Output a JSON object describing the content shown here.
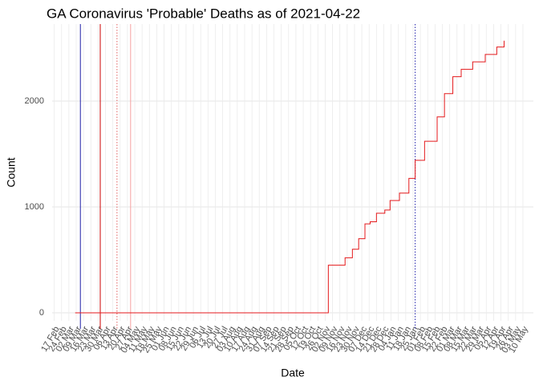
{
  "chart_data": {
    "type": "line",
    "title": "GA Coronavirus 'Probable' Deaths as of 2021-04-22",
    "x_label": "Date",
    "y_label": "Count",
    "x": [
      "2020-03-08",
      "2020-11-04",
      "2020-11-05",
      "2020-11-11",
      "2020-11-21",
      "2020-11-28",
      "2020-12-04",
      "2020-12-10",
      "2020-12-15",
      "2020-12-21",
      "2020-12-29",
      "2021-01-03",
      "2021-01-12",
      "2021-01-21",
      "2021-01-27",
      "2021-02-05",
      "2021-02-17",
      "2021-02-24",
      "2021-03-04",
      "2021-03-12",
      "2021-03-23",
      "2021-04-04",
      "2021-04-15",
      "2021-04-22"
    ],
    "series": [
      {
        "color": "#e41a1c",
        "values": [
          0,
          0,
          450,
          450,
          520,
          600,
          700,
          840,
          860,
          940,
          970,
          1060,
          1130,
          1270,
          1440,
          1620,
          1850,
          2070,
          2230,
          2300,
          2370,
          2440,
          2510,
          2570
        ]
      }
    ],
    "vlines": [
      {
        "x": "2020-03-13",
        "color": "#1f1fa8",
        "dash": false
      },
      {
        "x": "2020-04-01",
        "color": "#cc0000",
        "dash": false
      },
      {
        "x": "2020-04-17",
        "color": "#e06060",
        "dash": true
      },
      {
        "x": "2020-04-30",
        "color": "#f4a0a0",
        "dash": false
      },
      {
        "x": "2021-01-27",
        "color": "#1f1fa8",
        "dash": true
      }
    ],
    "xlim": [
      "2020-02-15",
      "2021-05-20"
    ],
    "xticks": [
      {
        "value": "2020-02-17",
        "label": "17 Feb"
      },
      {
        "value": "2020-02-24",
        "label": "24 Feb"
      },
      {
        "value": "2020-03-02",
        "label": "02 Mar"
      },
      {
        "value": "2020-03-09",
        "label": "09 Mar"
      },
      {
        "value": "2020-03-16",
        "label": "16 Mar"
      },
      {
        "value": "2020-03-23",
        "label": "23 Mar"
      },
      {
        "value": "2020-03-30",
        "label": "30 Mar"
      },
      {
        "value": "2020-04-06",
        "label": "06 Apr"
      },
      {
        "value": "2020-04-13",
        "label": "13 Apr"
      },
      {
        "value": "2020-04-20",
        "label": "20 Apr"
      },
      {
        "value": "2020-04-27",
        "label": "27 Apr"
      },
      {
        "value": "2020-05-04",
        "label": "04 May"
      },
      {
        "value": "2020-05-11",
        "label": "11 May"
      },
      {
        "value": "2020-05-18",
        "label": "18 May"
      },
      {
        "value": "2020-05-25",
        "label": "25 May"
      },
      {
        "value": "2020-06-01",
        "label": "01 Jun"
      },
      {
        "value": "2020-06-08",
        "label": "08 Jun"
      },
      {
        "value": "2020-06-15",
        "label": "15 Jun"
      },
      {
        "value": "2020-06-22",
        "label": "22 Jun"
      },
      {
        "value": "2020-06-29",
        "label": "29 Jun"
      },
      {
        "value": "2020-07-06",
        "label": "06 Jul"
      },
      {
        "value": "2020-07-13",
        "label": "13 Jul"
      },
      {
        "value": "2020-07-20",
        "label": "20 Jul"
      },
      {
        "value": "2020-07-27",
        "label": "27 Jul"
      },
      {
        "value": "2020-08-03",
        "label": "03 Aug"
      },
      {
        "value": "2020-08-10",
        "label": "10 Aug"
      },
      {
        "value": "2020-08-17",
        "label": "17 Aug"
      },
      {
        "value": "2020-08-24",
        "label": "24 Aug"
      },
      {
        "value": "2020-08-31",
        "label": "31 Aug"
      },
      {
        "value": "2020-09-07",
        "label": "07 Sep"
      },
      {
        "value": "2020-09-14",
        "label": "14 Sep"
      },
      {
        "value": "2020-09-21",
        "label": "21 Sep"
      },
      {
        "value": "2020-09-28",
        "label": "28 Sep"
      },
      {
        "value": "2020-10-05",
        "label": "05 Oct"
      },
      {
        "value": "2020-10-12",
        "label": "12 Oct"
      },
      {
        "value": "2020-10-19",
        "label": "19 Oct"
      },
      {
        "value": "2020-10-26",
        "label": "26 Oct"
      },
      {
        "value": "2020-11-02",
        "label": "02 Nov"
      },
      {
        "value": "2020-11-09",
        "label": "09 Nov"
      },
      {
        "value": "2020-11-16",
        "label": "16 Nov"
      },
      {
        "value": "2020-11-23",
        "label": "23 Nov"
      },
      {
        "value": "2020-11-30",
        "label": "30 Nov"
      },
      {
        "value": "2020-12-07",
        "label": "07 Dec"
      },
      {
        "value": "2020-12-14",
        "label": "14 Dec"
      },
      {
        "value": "2020-12-21",
        "label": "21 Dec"
      },
      {
        "value": "2020-12-28",
        "label": "28 Dec"
      },
      {
        "value": "2021-01-04",
        "label": "04 Jan"
      },
      {
        "value": "2021-01-11",
        "label": "11 Jan"
      },
      {
        "value": "2021-01-18",
        "label": "18 Jan"
      },
      {
        "value": "2021-01-25",
        "label": "25 Jan"
      },
      {
        "value": "2021-02-01",
        "label": "01 Feb"
      },
      {
        "value": "2021-02-08",
        "label": "08 Feb"
      },
      {
        "value": "2021-02-15",
        "label": "15 Feb"
      },
      {
        "value": "2021-02-22",
        "label": "22 Feb"
      },
      {
        "value": "2021-03-01",
        "label": "01 Mar"
      },
      {
        "value": "2021-03-08",
        "label": "08 Mar"
      },
      {
        "value": "2021-03-15",
        "label": "15 Mar"
      },
      {
        "value": "2021-03-22",
        "label": "22 Mar"
      },
      {
        "value": "2021-03-29",
        "label": "29 Mar"
      },
      {
        "value": "2021-04-05",
        "label": "05 Apr"
      },
      {
        "value": "2021-04-12",
        "label": "12 Apr"
      },
      {
        "value": "2021-04-19",
        "label": "19 Apr"
      },
      {
        "value": "2021-04-26",
        "label": "26 Apr"
      },
      {
        "value": "2021-05-03",
        "label": "03 May"
      },
      {
        "value": "2021-05-10",
        "label": "10 May"
      }
    ],
    "ylim": [
      -76,
      2727
    ],
    "yticks": [
      0,
      1000,
      2000
    ],
    "grid": true
  }
}
